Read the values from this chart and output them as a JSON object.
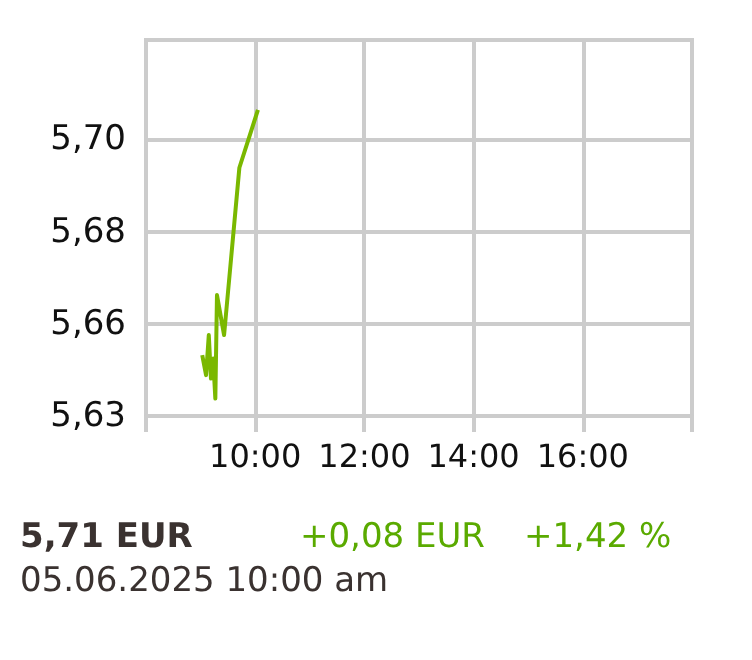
{
  "chart_data": {
    "type": "line",
    "x": [
      9.03,
      9.1,
      9.15,
      9.19,
      9.23,
      9.27,
      9.3,
      9.43,
      9.71,
      10.05
    ],
    "series": [
      {
        "color": "#7ab800",
        "values": [
          5.6493,
          5.6446,
          5.654,
          5.6438,
          5.6485,
          5.6391,
          5.6634,
          5.654,
          5.6933,
          5.7069
        ]
      }
    ],
    "xlim": [
      8,
      18
    ],
    "xticks": [
      {
        "value": 8,
        "label": null
      },
      {
        "value": 10,
        "label": "10:00"
      },
      {
        "value": 12,
        "label": "12:00"
      },
      {
        "value": 14,
        "label": "14:00"
      },
      {
        "value": 16,
        "label": "16:00"
      },
      {
        "value": 18,
        "label": null
      }
    ],
    "ylim": [
      5.635,
      5.7233
    ],
    "yticks": [
      {
        "value": 5.635,
        "label": "5,63"
      },
      {
        "value": 5.6567,
        "label": "5,66"
      },
      {
        "value": 5.6783,
        "label": "5,68"
      },
      {
        "value": 5.7,
        "label": "5,70"
      }
    ],
    "grid": true,
    "marker": "none",
    "line_style": "solid",
    "annotations": [
      "5,71 EUR",
      "+0,08 EUR",
      "+1,42 %",
      "05.06.2025 10:00 am"
    ]
  }
}
